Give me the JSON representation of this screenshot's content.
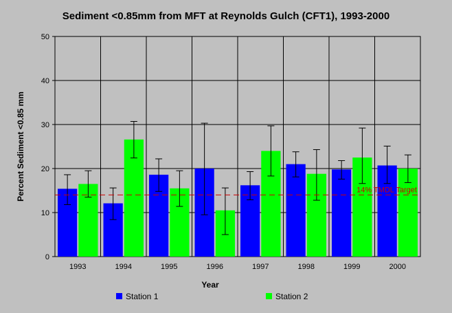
{
  "chart_data": {
    "type": "bar",
    "title": "Sediment <0.85mm from MFT at Reynolds Gulch (CFT1), 1993-2000",
    "xlabel": "Year",
    "ylabel": "Percent Sediment <0.85 mm",
    "ylim": [
      0,
      50
    ],
    "yticks": [
      "0",
      "10",
      "20",
      "30",
      "40",
      "50"
    ],
    "categories": [
      "1993",
      "1994",
      "1995",
      "1996",
      "1997",
      "1998",
      "1999",
      "2000"
    ],
    "grid": true,
    "legend_position": "bottom",
    "series": [
      {
        "name": "Station 1",
        "color": "#0000ff",
        "values": [
          15.4,
          12.1,
          18.6,
          20.0,
          16.2,
          21.0,
          19.8,
          20.7
        ],
        "error_low": [
          11.8,
          8.4,
          14.8,
          9.5,
          12.9,
          18.1,
          17.6,
          16.6
        ],
        "error_high": [
          18.6,
          15.6,
          22.2,
          30.3,
          19.3,
          23.8,
          21.8,
          25.1
        ]
      },
      {
        "name": "Station 2",
        "color": "#00ff00",
        "values": [
          16.5,
          26.6,
          15.5,
          10.5,
          24.0,
          18.8,
          22.5,
          20.0
        ],
        "error_low": [
          13.5,
          22.4,
          11.4,
          5.0,
          18.3,
          12.8,
          16.6,
          16.8
        ],
        "error_high": [
          19.5,
          30.7,
          19.5,
          15.6,
          29.7,
          24.3,
          29.2,
          23.1
        ]
      }
    ],
    "reference_line": {
      "label": "14% TMDL Target",
      "value": 14,
      "color": "#cc0000"
    }
  }
}
